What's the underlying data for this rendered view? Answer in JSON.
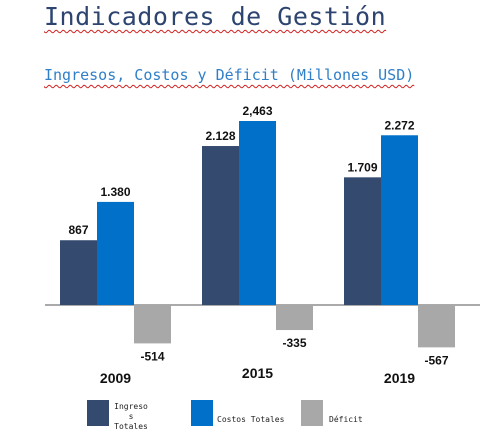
{
  "header": {
    "title": "Indicadores de Gestión",
    "subtitle": "Ingresos, Costos y Déficit (Millones USD)"
  },
  "chart_data": {
    "type": "bar",
    "categories": [
      "2009",
      "2015",
      "2019"
    ],
    "series": [
      {
        "name": "Ingresos Totales",
        "values": [
          867,
          2128,
          1709
        ],
        "labels": [
          "867",
          "2.128",
          "1.709"
        ],
        "color": "#344a6e"
      },
      {
        "name": "Costos Totales",
        "values": [
          1380,
          2463,
          2272
        ],
        "labels": [
          "1.380",
          "2,463",
          "2.272"
        ],
        "color": "#0070c8"
      },
      {
        "name": "Déficit",
        "values": [
          -514,
          -335,
          -567
        ],
        "labels": [
          "-514",
          "-335",
          "-567"
        ],
        "color": "#a8a8a8"
      }
    ],
    "ylim": [
      -700,
      2500
    ],
    "grid": false,
    "legend": "bottom"
  },
  "legend": {
    "items": [
      {
        "label": "Ingreso s Totales",
        "color": "#344a6e"
      },
      {
        "label": "Costos Totales",
        "color": "#0070c8"
      },
      {
        "label": "Déficit",
        "color": "#a8a8a8"
      }
    ]
  }
}
